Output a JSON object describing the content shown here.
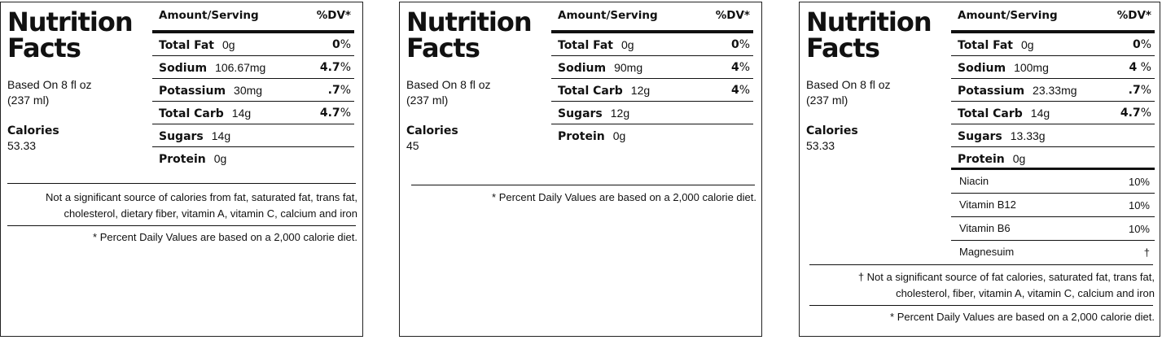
{
  "labels": [
    {
      "title_line1": "Nutrition",
      "title_line2": "Facts",
      "serving_line1": "Based On 8 fl oz",
      "serving_line2": "(237 ml)",
      "calories_label": "Calories",
      "calories_value": "53.33",
      "header_amount": "Amount/Serving",
      "header_dv": "%DV*",
      "nutrients": [
        {
          "name": "Total Fat",
          "amount": "0g",
          "dv_num": "0",
          "dv_pct": "%"
        },
        {
          "name": "Sodium",
          "amount": "106.67mg",
          "dv_num": "4.7",
          "dv_pct": "%"
        },
        {
          "name": "Potassium",
          "amount": "30mg",
          "dv_num": ".7",
          "dv_pct": "%"
        },
        {
          "name": "Total Carb",
          "amount": "14g",
          "dv_num": "4.7",
          "dv_pct": "%"
        },
        {
          "name": "Sugars",
          "amount": "14g",
          "dv_num": "",
          "dv_pct": ""
        },
        {
          "name": "Protein",
          "amount": "0g",
          "dv_num": "",
          "dv_pct": ""
        }
      ],
      "note_line1": "Not a significant source of calories from fat, saturated fat, trans fat,",
      "note_line2": "cholesterol, dietary fiber, vitamin A, vitamin C, calcium and iron",
      "footnote": "* Percent Daily Values are based on a 2,000 calorie diet."
    },
    {
      "title_line1": "Nutrition",
      "title_line2": "Facts",
      "serving_line1": "Based On 8 fl oz",
      "serving_line2": "(237 ml)",
      "calories_label": "Calories",
      "calories_value": "45",
      "header_amount": "Amount/Serving",
      "header_dv": "%DV*",
      "nutrients": [
        {
          "name": "Total Fat",
          "amount": "0g",
          "dv_num": "0",
          "dv_pct": "%"
        },
        {
          "name": "Sodium",
          "amount": "90mg",
          "dv_num": "4",
          "dv_pct": "%"
        },
        {
          "name": "Total Carb",
          "amount": "12g",
          "dv_num": "4",
          "dv_pct": "%"
        },
        {
          "name": "Sugars",
          "amount": "12g",
          "dv_num": "",
          "dv_pct": ""
        },
        {
          "name": "Protein",
          "amount": "0g",
          "dv_num": "",
          "dv_pct": ""
        }
      ],
      "footnote": "* Percent Daily Values are based on a 2,000 calorie diet."
    },
    {
      "title_line1": "Nutrition",
      "title_line2": "Facts",
      "serving_line1": "Based On 8 fl oz",
      "serving_line2": "(237 ml)",
      "calories_label": "Calories",
      "calories_value": "53.33",
      "header_amount": "Amount/Serving",
      "header_dv": "%DV*",
      "nutrients": [
        {
          "name": "Total Fat",
          "amount": "0g",
          "dv_num": "0",
          "dv_pct": "%"
        },
        {
          "name": "Sodium",
          "amount": "100mg",
          "dv_num": "4",
          "dv_pct": " %"
        },
        {
          "name": "Potassium",
          "amount": "23.33mg",
          "dv_num": ".7",
          "dv_pct": "%"
        },
        {
          "name": "Total Carb",
          "amount": "14g",
          "dv_num": "4.7",
          "dv_pct": "%"
        },
        {
          "name": "Sugars",
          "amount": "13.33g",
          "dv_num": "",
          "dv_pct": ""
        },
        {
          "name": "Protein",
          "amount": "0g",
          "dv_num": "",
          "dv_pct": ""
        }
      ],
      "vitamins": [
        {
          "name": "Niacin",
          "value": "10%"
        },
        {
          "name": "Vitamin B12",
          "value": "10%"
        },
        {
          "name": "Vitamin B6",
          "value": "10%"
        },
        {
          "name": "Magnesuim",
          "value": "†"
        }
      ],
      "note_line1": "† Not a significant source of fat calories, saturated fat, trans fat,",
      "note_line2": "cholesterol, fiber, vitamin A, vitamin C, calcium and iron",
      "footnote": "* Percent Daily Values are based on a 2,000 calorie diet."
    }
  ]
}
